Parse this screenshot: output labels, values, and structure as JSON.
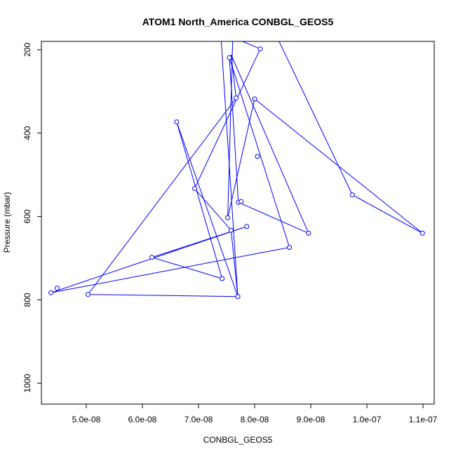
{
  "chart_data": {
    "type": "line",
    "title": "ATOM1 North_America CONBGL_GEOS5",
    "xlabel": "CONBGL_GEOS5",
    "ylabel": "Pressure (mbar)",
    "xlim": [
      4.2e-08,
      1.12e-07
    ],
    "ylim": [
      1050,
      180
    ],
    "y_reversed": true,
    "x_ticks": [
      5e-08,
      6e-08,
      7e-08,
      8e-08,
      9e-08,
      1e-07,
      1.1e-07
    ],
    "x_tick_labels": [
      "5.0e-08",
      "6.0e-08",
      "7.0e-08",
      "8.0e-08",
      "9.0e-08",
      "1.0e-07",
      "1.1e-07"
    ],
    "y_ticks": [
      200,
      400,
      600,
      800,
      1000
    ],
    "y_tick_labels": [
      "200",
      "400",
      "600",
      "800",
      "1000"
    ],
    "grid": false,
    "line_color": "#0000ff",
    "marker": "open-circle",
    "series": [
      {
        "x": [
          7.4e-08,
          7.7e-08,
          5.03e-08,
          7.67e-08,
          7.58e-08,
          8.96e-08,
          7.71e-08,
          7.55e-08,
          8.62e-08,
          4.37e-08,
          7.86e-08,
          6.17e-08,
          7.42e-08,
          6.61e-08,
          7.7e-08,
          7.58e-08,
          6.93e-08,
          8.1e-08,
          7.61e-08,
          7.52e-08,
          8e-08,
          1.099e-07,
          9.74e-08,
          8.4e-08
        ],
        "y": [
          170,
          792,
          787,
          316,
          212,
          640,
          566,
          219,
          674,
          783,
          624,
          698,
          749,
          373,
          792,
          633,
          533,
          198,
          170,
          603,
          318,
          640,
          548,
          170
        ],
        "markers": [
          false,
          true,
          true,
          true,
          false,
          true,
          true,
          true,
          true,
          true,
          true,
          true,
          true,
          true,
          true,
          true,
          true,
          true,
          false,
          true,
          true,
          true,
          true,
          false
        ]
      }
    ],
    "extra_points": [
      {
        "x": 4.48e-08,
        "y": 772
      },
      {
        "x": 8.05e-08,
        "y": 456
      },
      {
        "x": 7.76e-08,
        "y": 564
      }
    ]
  }
}
